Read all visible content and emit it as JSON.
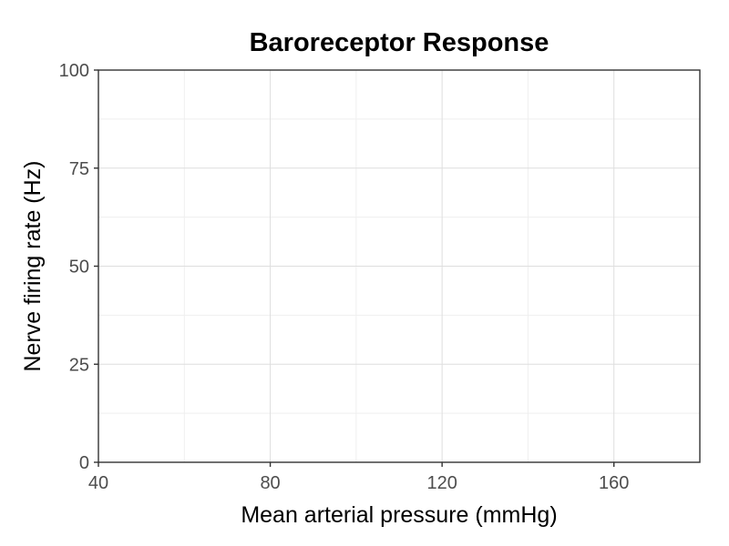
{
  "chart_data": {
    "type": "line",
    "title": "Baroreceptor Response",
    "xlabel": "Mean arterial pressure (mmHg)",
    "ylabel": "Nerve firing rate (Hz)",
    "xlim": [
      40,
      180
    ],
    "ylim": [
      0,
      100
    ],
    "x_ticks": [
      40,
      80,
      120,
      160
    ],
    "y_ticks": [
      0,
      25,
      50,
      75,
      100
    ],
    "x_minor_ticks": [
      60,
      100,
      140
    ],
    "y_minor_ticks": [
      12.5,
      37.5,
      62.5,
      87.5
    ],
    "grid": true,
    "series": []
  }
}
